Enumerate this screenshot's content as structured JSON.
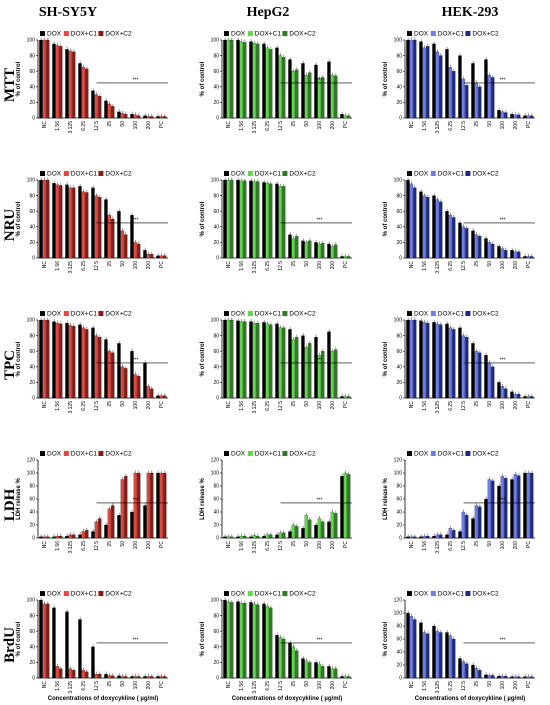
{
  "columns": [
    "SH-SY5Y",
    "HepG2",
    "HEK-293"
  ],
  "rows": [
    "MTT",
    "NRU",
    "TPC",
    "LDH",
    "BrdU"
  ],
  "categories": [
    "NC",
    "1.56",
    "3.125",
    "6.25",
    "12.5",
    "25",
    "50",
    "100",
    "200",
    "PC"
  ],
  "legend": [
    "DOX",
    "DOX+C1",
    "DOX+C2"
  ],
  "xlabel": "Concentrations of doxycykline ( µg/ml)",
  "sig_label": "***",
  "colors": {
    "dox": "#000000",
    "SH-SY5Y": [
      "#e4473f",
      "#8a1a15"
    ],
    "HepG2": [
      "#5fd84c",
      "#2f7b23"
    ],
    "HEK-293": [
      "#6e7cf0",
      "#1d2a85"
    ]
  },
  "chart_data": [
    {
      "type": "bar",
      "row": "MTT",
      "cell": "SH-SY5Y",
      "ylabel": "% of control",
      "ylim": [
        0,
        100
      ],
      "series": [
        {
          "name": "DOX",
          "values": [
            100,
            95,
            88,
            70,
            35,
            22,
            8,
            5,
            3,
            2
          ]
        },
        {
          "name": "DOX+C1",
          "values": [
            100,
            93,
            86,
            65,
            30,
            18,
            6,
            4,
            2,
            2
          ]
        },
        {
          "name": "DOX+C2",
          "values": [
            100,
            92,
            85,
            63,
            28,
            15,
            5,
            3,
            2,
            2
          ]
        }
      ]
    },
    {
      "type": "bar",
      "row": "MTT",
      "cell": "HepG2",
      "ylabel": "% of control",
      "ylim": [
        0,
        100
      ],
      "series": [
        {
          "name": "DOX",
          "values": [
            100,
            100,
            98,
            95,
            90,
            75,
            70,
            68,
            72,
            5
          ]
        },
        {
          "name": "DOX+C1",
          "values": [
            100,
            98,
            96,
            90,
            80,
            60,
            55,
            50,
            55,
            3
          ]
        },
        {
          "name": "DOX+C2",
          "values": [
            100,
            97,
            95,
            88,
            78,
            62,
            58,
            52,
            54,
            3
          ]
        }
      ]
    },
    {
      "type": "bar",
      "row": "MTT",
      "cell": "HEK-293",
      "ylabel": "% of control",
      "ylim": [
        0,
        100
      ],
      "series": [
        {
          "name": "DOX",
          "values": [
            100,
            98,
            95,
            88,
            80,
            70,
            75,
            10,
            5,
            3
          ]
        },
        {
          "name": "DOX+C1",
          "values": [
            100,
            90,
            85,
            65,
            50,
            45,
            55,
            8,
            4,
            3
          ]
        },
        {
          "name": "DOX+C2",
          "values": [
            100,
            92,
            80,
            60,
            42,
            40,
            52,
            7,
            4,
            3
          ]
        }
      ]
    },
    {
      "type": "bar",
      "row": "NRU",
      "cell": "SH-SY5Y",
      "ylabel": "% of control",
      "ylim": [
        0,
        100
      ],
      "series": [
        {
          "name": "DOX",
          "values": [
            100,
            96,
            94,
            92,
            90,
            75,
            60,
            55,
            10,
            3
          ]
        },
        {
          "name": "DOX+C1",
          "values": [
            100,
            94,
            90,
            85,
            80,
            55,
            35,
            20,
            5,
            3
          ]
        },
        {
          "name": "DOX+C2",
          "values": [
            100,
            93,
            90,
            84,
            78,
            50,
            30,
            18,
            5,
            3
          ]
        }
      ]
    },
    {
      "type": "bar",
      "row": "NRU",
      "cell": "HepG2",
      "ylabel": "% of control",
      "ylim": [
        0,
        100
      ],
      "series": [
        {
          "name": "DOX",
          "values": [
            100,
            100,
            99,
            97,
            95,
            30,
            22,
            20,
            18,
            2
          ]
        },
        {
          "name": "DOX+C1",
          "values": [
            100,
            99,
            98,
            96,
            92,
            25,
            20,
            18,
            15,
            2
          ]
        },
        {
          "name": "DOX+C2",
          "values": [
            100,
            99,
            98,
            95,
            92,
            28,
            22,
            19,
            17,
            2
          ]
        }
      ]
    },
    {
      "type": "bar",
      "row": "NRU",
      "cell": "HEK-293",
      "ylabel": "% of control",
      "ylim": [
        0,
        100
      ],
      "series": [
        {
          "name": "DOX",
          "values": [
            100,
            85,
            80,
            60,
            45,
            35,
            25,
            15,
            10,
            2
          ]
        },
        {
          "name": "DOX+C1",
          "values": [
            95,
            80,
            75,
            55,
            40,
            30,
            20,
            12,
            8,
            2
          ]
        },
        {
          "name": "DOX+C2",
          "values": [
            90,
            78,
            72,
            52,
            38,
            28,
            18,
            10,
            8,
            2
          ]
        }
      ]
    },
    {
      "type": "bar",
      "row": "TPC",
      "cell": "SH-SY5Y",
      "ylabel": "% of control",
      "ylim": [
        0,
        100
      ],
      "series": [
        {
          "name": "DOX",
          "values": [
            100,
            98,
            96,
            94,
            90,
            75,
            70,
            60,
            45,
            3
          ]
        },
        {
          "name": "DOX+C1",
          "values": [
            100,
            96,
            93,
            90,
            80,
            60,
            40,
            30,
            15,
            3
          ]
        },
        {
          "name": "DOX+C2",
          "values": [
            100,
            95,
            92,
            88,
            78,
            58,
            38,
            28,
            12,
            3
          ]
        }
      ]
    },
    {
      "type": "bar",
      "row": "TPC",
      "cell": "HepG2",
      "ylabel": "% of control",
      "ylim": [
        0,
        100
      ],
      "series": [
        {
          "name": "DOX",
          "values": [
            100,
            99,
            98,
            97,
            95,
            88,
            80,
            78,
            85,
            2
          ]
        },
        {
          "name": "DOX+C1",
          "values": [
            100,
            98,
            96,
            95,
            90,
            75,
            65,
            55,
            60,
            2
          ]
        },
        {
          "name": "DOX+C2",
          "values": [
            100,
            98,
            96,
            94,
            90,
            78,
            70,
            60,
            62,
            2
          ]
        }
      ]
    },
    {
      "type": "bar",
      "row": "TPC",
      "cell": "HEK-293",
      "ylabel": "% of control",
      "ylim": [
        0,
        100
      ],
      "series": [
        {
          "name": "DOX",
          "values": [
            100,
            99,
            97,
            95,
            90,
            70,
            55,
            20,
            8,
            2
          ]
        },
        {
          "name": "DOX+C1",
          "values": [
            100,
            97,
            95,
            90,
            80,
            60,
            45,
            15,
            5,
            2
          ]
        },
        {
          "name": "DOX+C2",
          "values": [
            100,
            96,
            94,
            88,
            78,
            58,
            40,
            12,
            5,
            2
          ]
        }
      ]
    },
    {
      "type": "bar",
      "row": "LDH",
      "cell": "SH-SY5Y",
      "ylabel": "LDH release %",
      "ylim": [
        0,
        120
      ],
      "series": [
        {
          "name": "DOX",
          "values": [
            2,
            2,
            3,
            5,
            10,
            20,
            35,
            40,
            50,
            100
          ]
        },
        {
          "name": "DOX+C1",
          "values": [
            2,
            3,
            5,
            10,
            25,
            45,
            90,
            100,
            100,
            100
          ]
        },
        {
          "name": "DOX+C2",
          "values": [
            2,
            3,
            5,
            12,
            30,
            50,
            95,
            100,
            100,
            100
          ]
        }
      ]
    },
    {
      "type": "bar",
      "row": "LDH",
      "cell": "HepG2",
      "ylabel": "LDH release %",
      "ylim": [
        0,
        120
      ],
      "series": [
        {
          "name": "DOX",
          "values": [
            2,
            2,
            2,
            3,
            5,
            10,
            15,
            20,
            25,
            95
          ]
        },
        {
          "name": "DOX+C1",
          "values": [
            2,
            3,
            4,
            5,
            8,
            20,
            35,
            30,
            40,
            100
          ]
        },
        {
          "name": "DOX+C2",
          "values": [
            2,
            3,
            3,
            5,
            8,
            18,
            28,
            25,
            38,
            98
          ]
        }
      ]
    },
    {
      "type": "bar",
      "row": "LDH",
      "cell": "HEK-293",
      "ylabel": "LDH release %",
      "ylim": [
        0,
        120
      ],
      "series": [
        {
          "name": "DOX",
          "values": [
            2,
            2,
            3,
            5,
            10,
            30,
            60,
            80,
            90,
            100
          ]
        },
        {
          "name": "DOX+C1",
          "values": [
            2,
            3,
            5,
            15,
            40,
            50,
            90,
            95,
            98,
            100
          ]
        },
        {
          "name": "DOX+C2",
          "values": [
            2,
            3,
            5,
            12,
            35,
            48,
            88,
            92,
            96,
            100
          ]
        }
      ]
    },
    {
      "type": "bar",
      "row": "BrdU",
      "cell": "SH-SY5Y",
      "ylabel": "% of control",
      "ylim": [
        0,
        100
      ],
      "series": [
        {
          "name": "DOX",
          "values": [
            100,
            90,
            85,
            75,
            40,
            5,
            3,
            2,
            2,
            2
          ]
        },
        {
          "name": "DOX+C1",
          "values": [
            95,
            15,
            12,
            10,
            5,
            3,
            2,
            2,
            2,
            2
          ]
        },
        {
          "name": "DOX+C2",
          "values": [
            95,
            12,
            10,
            8,
            5,
            3,
            2,
            2,
            2,
            2
          ]
        }
      ]
    },
    {
      "type": "bar",
      "row": "BrdU",
      "cell": "HepG2",
      "ylabel": "% of control",
      "ylim": [
        0,
        100
      ],
      "series": [
        {
          "name": "DOX",
          "values": [
            100,
            98,
            97,
            95,
            55,
            45,
            25,
            20,
            15,
            2
          ]
        },
        {
          "name": "DOX+C1",
          "values": [
            98,
            96,
            95,
            92,
            52,
            40,
            22,
            18,
            12,
            2
          ]
        },
        {
          "name": "DOX+C2",
          "values": [
            97,
            96,
            94,
            90,
            50,
            35,
            20,
            15,
            12,
            2
          ]
        }
      ]
    },
    {
      "type": "bar",
      "row": "BrdU",
      "cell": "HEK-293",
      "ylabel": "% of control",
      "ylim": [
        0,
        120
      ],
      "series": [
        {
          "name": "DOX",
          "values": [
            100,
            85,
            80,
            70,
            30,
            20,
            5,
            3,
            2,
            2
          ]
        },
        {
          "name": "DOX+C1",
          "values": [
            95,
            70,
            72,
            65,
            25,
            15,
            4,
            3,
            2,
            2
          ]
        },
        {
          "name": "DOX+C2",
          "values": [
            90,
            68,
            70,
            60,
            22,
            12,
            4,
            3,
            2,
            2
          ]
        }
      ]
    }
  ]
}
